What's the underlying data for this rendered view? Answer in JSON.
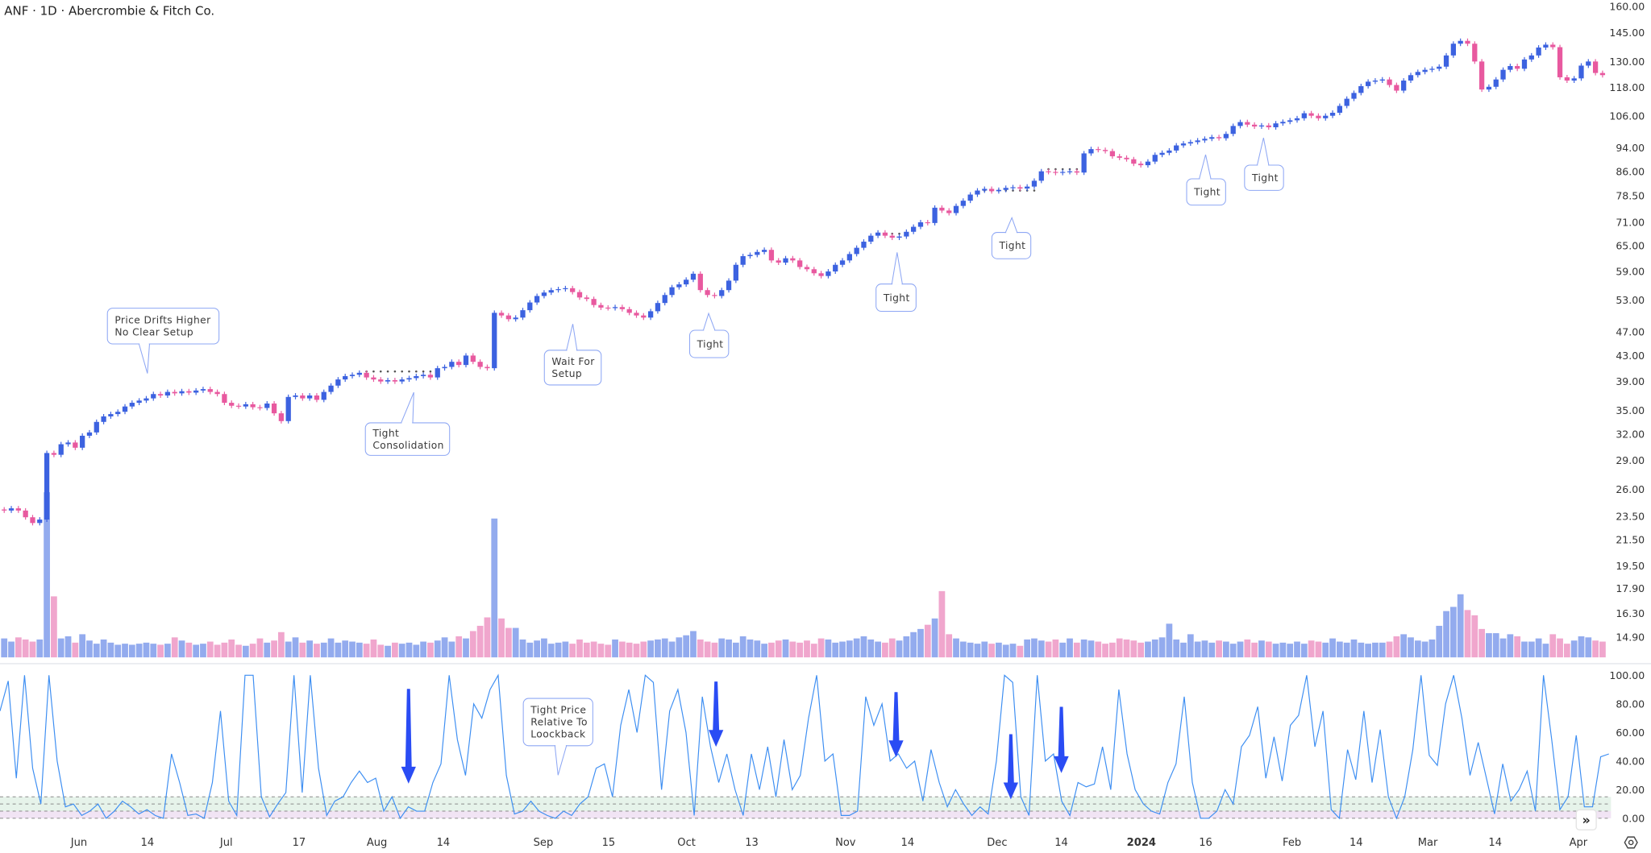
{
  "header": {
    "title": "ANF · 1D · Abercrombie & Fitch Co."
  },
  "colors": {
    "up": "#3c62e0",
    "down": "#e8599f",
    "volume_up": "#93abee",
    "volume_down": "#f0a6cd",
    "oscillator": "#3d8ef2",
    "arrow": "#2a4cf4",
    "band_green": "#e6f3ea",
    "band_purple": "#f1e4f4",
    "callout_border": "#8ea7f4"
  },
  "chart_data": [
    {
      "type": "candlestick",
      "title": "ANF · 1D · Abercrombie & Fitch Co.",
      "scale": "log",
      "ylim": [
        14.3,
        162
      ],
      "y_ticks": [
        "160.00",
        "145.00",
        "130.00",
        "118.00",
        "106.00",
        "94.00",
        "86.00",
        "78.50",
        "71.00",
        "65.00",
        "59.00",
        "53.00",
        "47.00",
        "43.00",
        "39.00",
        "35.00",
        "32.00",
        "29.00",
        "26.00",
        "23.50",
        "21.50",
        "19.50",
        "17.90",
        "16.30",
        "14.90"
      ],
      "x_ticks": [
        {
          "label": "Jun"
        },
        {
          "label": "14"
        },
        {
          "label": "Jul"
        },
        {
          "label": "17"
        },
        {
          "label": "Aug"
        },
        {
          "label": "14"
        },
        {
          "label": "Sep"
        },
        {
          "label": "15"
        },
        {
          "label": "Oct"
        },
        {
          "label": "13"
        },
        {
          "label": "Nov"
        },
        {
          "label": "14"
        },
        {
          "label": "Dec"
        },
        {
          "label": "14"
        },
        {
          "label": "2024"
        },
        {
          "label": "16"
        },
        {
          "label": "Feb"
        },
        {
          "label": "14"
        },
        {
          "label": "Mar"
        },
        {
          "label": "14"
        },
        {
          "label": "Apr"
        }
      ],
      "close": [
        24.0,
        24.2,
        24.0,
        23.4,
        22.9,
        23.2,
        29.8,
        29.6,
        30.8,
        31.0,
        30.4,
        31.8,
        32.2,
        33.5,
        34.2,
        34.5,
        34.8,
        35.5,
        36.0,
        36.3,
        36.6,
        37.2,
        37.0,
        37.5,
        37.3,
        37.6,
        37.4,
        37.7,
        37.9,
        37.5,
        37.2,
        36.0,
        35.6,
        35.5,
        35.8,
        35.4,
        35.3,
        35.9,
        34.6,
        33.6,
        36.8,
        37.0,
        36.6,
        37.0,
        36.4,
        37.5,
        38.4,
        39.3,
        39.8,
        40.0,
        40.3,
        39.6,
        39.3,
        39.0,
        39.2,
        39.0,
        39.3,
        39.5,
        39.8,
        40.0,
        39.6,
        41.0,
        41.2,
        42.0,
        41.5,
        43.0,
        42.0,
        41.2,
        41.0,
        50.5,
        50.0,
        49.3,
        49.6,
        51.0,
        52.5,
        53.8,
        54.5,
        55.0,
        55.2,
        55.4,
        54.6,
        53.5,
        53.2,
        52.0,
        51.5,
        51.4,
        51.6,
        51.2,
        50.5,
        50.0,
        49.6,
        50.8,
        52.4,
        54.0,
        55.6,
        56.2,
        57.2,
        58.5,
        55.0,
        54.0,
        53.8,
        55.0,
        57.0,
        60.5,
        62.5,
        62.8,
        63.5,
        64.0,
        61.5,
        61.0,
        62.0,
        61.5,
        60.0,
        59.5,
        58.6,
        58.0,
        59.0,
        60.5,
        61.5,
        63.0,
        64.5,
        66.0,
        67.5,
        68.3,
        67.5,
        67.0,
        67.3,
        68.5,
        69.8,
        71.0,
        70.8,
        75.0,
        74.2,
        73.5,
        75.5,
        77.0,
        78.8,
        80.0,
        80.5,
        79.8,
        80.2,
        80.8,
        81.0,
        80.6,
        81.2,
        83.0,
        86.0,
        85.8,
        85.5,
        85.8,
        86.0,
        85.6,
        92.0,
        93.5,
        93.2,
        92.8,
        91.0,
        90.5,
        90.0,
        88.5,
        88.0,
        89.2,
        91.5,
        92.2,
        93.0,
        94.8,
        95.5,
        96.0,
        96.6,
        97.2,
        97.8,
        97.4,
        99.0,
        102.0,
        103.5,
        102.5,
        101.8,
        102.2,
        101.5,
        103.0,
        103.6,
        104.2,
        105.0,
        107.0,
        106.0,
        105.0,
        106.0,
        107.2,
        110.0,
        113.0,
        115.5,
        118.5,
        120.5,
        121.0,
        121.5,
        119.0,
        116.5,
        121.0,
        123.5,
        125.0,
        126.0,
        126.5,
        127.5,
        133.0,
        139.0,
        140.5,
        139.0,
        130.0,
        117.0,
        118.2,
        121.5,
        126.0,
        127.8,
        126.5,
        131.0,
        133.0,
        137.0,
        138.5,
        137.2,
        122.5,
        121.0,
        122.0,
        128.0,
        130.0,
        124.5,
        123.5
      ],
      "volume": [
        18,
        15,
        19,
        17,
        15,
        17,
        157,
        58,
        18,
        20,
        14,
        22,
        16,
        13,
        17,
        14,
        12,
        13,
        12,
        13,
        14,
        13,
        12,
        13,
        19,
        16,
        14,
        12,
        13,
        15,
        12,
        14,
        17,
        12,
        11,
        13,
        18,
        14,
        16,
        24,
        15,
        19,
        14,
        16,
        13,
        14,
        18,
        14,
        16,
        15,
        14,
        13,
        17,
        12,
        11,
        14,
        13,
        14,
        12,
        15,
        14,
        16,
        19,
        15,
        20,
        18,
        25,
        30,
        38,
        132,
        37,
        28,
        28,
        17,
        14,
        16,
        18,
        13,
        14,
        15,
        13,
        17,
        14,
        15,
        13,
        12,
        17,
        15,
        14,
        13,
        15,
        16,
        17,
        18,
        15,
        19,
        21,
        25,
        17,
        15,
        14,
        18,
        17,
        14,
        20,
        17,
        16,
        13,
        14,
        16,
        17,
        15,
        14,
        16,
        13,
        18,
        17,
        14,
        15,
        16,
        18,
        20,
        17,
        15,
        14,
        18,
        16,
        20,
        24,
        27,
        31,
        37,
        63,
        22,
        18,
        15,
        14,
        13,
        15,
        13,
        14,
        12,
        13,
        11,
        17,
        18,
        16,
        15,
        17,
        14,
        18,
        14,
        17,
        16,
        15,
        13,
        14,
        18,
        17,
        16,
        14,
        15,
        17,
        19,
        32,
        17,
        14,
        22,
        15,
        16,
        14,
        16,
        15,
        13,
        15,
        17,
        14,
        16,
        15,
        13,
        14,
        13,
        15,
        13,
        16,
        15,
        14,
        18,
        15,
        14,
        17,
        14,
        13,
        14,
        14,
        15,
        20,
        22,
        19,
        16,
        15,
        17,
        30,
        44,
        48,
        60,
        45,
        40,
        27,
        23,
        23,
        18,
        22,
        20,
        15,
        15,
        18,
        13,
        22,
        18,
        13,
        16,
        20,
        19,
        16,
        15
      ],
      "levels": [
        {
          "price": 40.5,
          "from_bar": 51,
          "to_bar": 61
        },
        {
          "price": 68.0,
          "from_bar": 124,
          "to_bar": 126
        },
        {
          "price": 80.0,
          "from_bar": 138,
          "to_bar": 145
        },
        {
          "price": 86.7,
          "from_bar": 147,
          "to_bar": 151
        }
      ]
    },
    {
      "type": "line",
      "ylim": [
        0,
        100
      ],
      "y_ticks": [
        "100.00",
        "80.00",
        "60.00",
        "40.00",
        "20.00",
        "0.00"
      ],
      "bands": [
        {
          "from": 5,
          "to": 15,
          "color": "#e6f3ea"
        },
        {
          "from": 0,
          "to": 5,
          "color": "#f1e4f4"
        }
      ],
      "dashed_levels": [
        15,
        10,
        5,
        0
      ],
      "values": [
        75,
        96,
        28,
        100,
        35,
        10,
        100,
        40,
        8,
        10,
        2,
        5,
        10,
        0,
        5,
        12,
        8,
        3,
        6,
        2,
        0,
        45,
        25,
        2,
        3,
        0,
        25,
        75,
        12,
        2,
        100,
        100,
        15,
        1,
        10,
        18,
        100,
        18,
        100,
        35,
        2,
        12,
        15,
        25,
        33,
        25,
        28,
        5,
        15,
        0,
        8,
        5,
        5,
        25,
        38,
        100,
        55,
        30,
        80,
        70,
        90,
        100,
        30,
        3,
        5,
        12,
        5,
        2,
        0,
        5,
        2,
        10,
        15,
        35,
        38,
        15,
        65,
        90,
        60,
        100,
        95,
        20,
        75,
        90,
        60,
        2,
        85,
        50,
        25,
        45,
        20,
        2,
        45,
        20,
        50,
        15,
        55,
        20,
        30,
        70,
        100,
        40,
        45,
        2,
        2,
        5,
        85,
        65,
        80,
        40,
        45,
        35,
        40,
        12,
        48,
        25,
        8,
        20,
        10,
        2,
        8,
        3,
        40,
        100,
        95,
        15,
        2,
        100,
        40,
        45,
        12,
        2,
        25,
        22,
        24,
        50,
        20,
        90,
        45,
        20,
        10,
        5,
        3,
        25,
        38,
        85,
        25,
        0,
        0,
        5,
        20,
        10,
        50,
        58,
        78,
        28,
        57,
        26,
        65,
        72,
        100,
        50,
        75,
        6,
        0,
        48,
        27,
        75,
        25,
        62,
        15,
        0,
        15,
        48,
        100,
        44,
        37,
        80,
        100,
        70,
        30,
        53,
        28,
        3,
        38,
        12,
        20,
        33,
        5,
        100,
        55,
        6,
        15,
        58,
        8,
        8,
        43,
        45
      ]
    }
  ],
  "annotations": [
    {
      "lines": [
        "Price Drifts Higher",
        "No Clear Setup"
      ]
    },
    {
      "lines": [
        "Tight",
        "Consolidation"
      ]
    },
    {
      "lines": [
        "Wait For",
        "Setup"
      ]
    },
    {
      "lines": [
        "Tight"
      ]
    },
    {
      "lines": [
        "Tight"
      ]
    },
    {
      "lines": [
        "Tight"
      ]
    },
    {
      "lines": [
        "Tight"
      ]
    },
    {
      "lines": [
        "Tight"
      ]
    },
    {
      "lines": [
        "Tight Price",
        "Relative To",
        "Loockback"
      ]
    }
  ],
  "controls": {
    "scroll_right_icon": "double-chevron-right-icon",
    "settings_icon": "gear-icon",
    "scroll_right_label": "»"
  }
}
